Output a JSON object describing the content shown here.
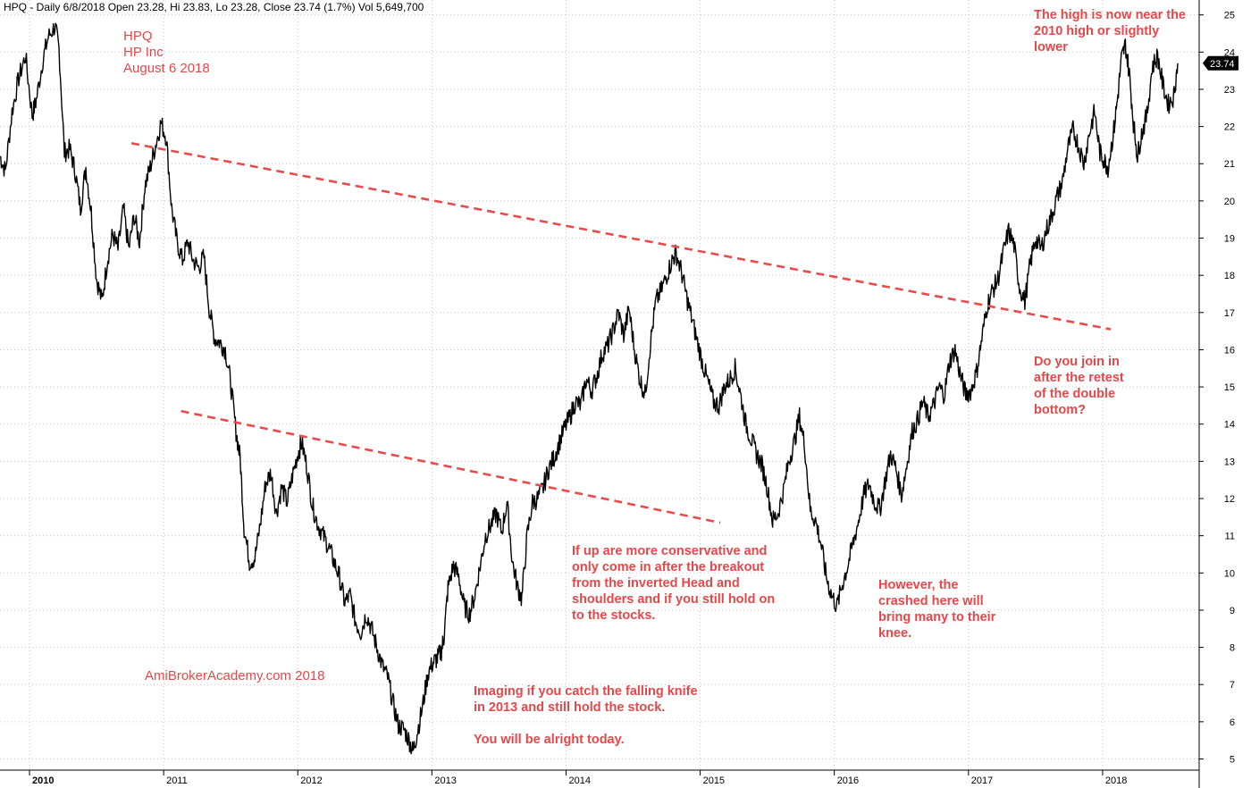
{
  "header": {
    "text": "HPQ - Daily 6/8/2018 Open 23.28, Hi 23.83, Lo 23.28, Close 23.74 (1.7%) Vol 5,649,700"
  },
  "price_label": "23.74",
  "colors": {
    "trendline": "#e84b4b",
    "note": "#e8474a",
    "price": "#000000",
    "grid": "#c8c8c8"
  },
  "notes": {
    "ticker": "HPQ\nHP Inc\nAugust 6 2018",
    "watermark": "AmiBrokerAcademy.com  2018",
    "knife": "Imaging if you catch the falling knife\nin 2013 and still hold the stock.\n\nYou will be alright today.",
    "conservative": "If up are more conservative and\nonly come in after the breakout\nfrom the inverted Head and\nshoulders and if you still hold on\nto the stocks.",
    "crash": "However, the\ncrashed here will\nbring many to their\nknee.",
    "retest": "Do you join in\nafter the retest\nof the double\nbottom?",
    "high": "The high is now near the\n2010 high or slightly\nlower"
  },
  "chart_data": {
    "type": "line",
    "title": "HPQ - Daily 6/8/2018",
    "ylim": [
      4.7,
      25.4
    ],
    "yticks": [
      5,
      6,
      7,
      8,
      9,
      10,
      11,
      12,
      13,
      14,
      15,
      16,
      17,
      18,
      19,
      20,
      21,
      22,
      23,
      24,
      25
    ],
    "xlim": [
      2009.78,
      2018.72
    ],
    "xtick_labels": [
      {
        "x": 2010,
        "label": "2010",
        "major": true
      },
      {
        "x": 2011,
        "label": "2011",
        "major": false
      },
      {
        "x": 2012,
        "label": "2012",
        "major": false
      },
      {
        "x": 2013,
        "label": "2013",
        "major": false
      },
      {
        "x": 2014,
        "label": "2014",
        "major": false
      },
      {
        "x": 2015,
        "label": "2015",
        "major": false
      },
      {
        "x": 2016,
        "label": "2016",
        "major": false
      },
      {
        "x": 2017,
        "label": "2017",
        "major": false
      },
      {
        "x": 2018,
        "label": "2018",
        "major": false
      }
    ],
    "series": [
      {
        "values": [
          [
            2009.78,
            21.2
          ],
          [
            2009.82,
            20.8
          ],
          [
            2009.87,
            22.4
          ],
          [
            2009.92,
            23.3
          ],
          [
            2009.97,
            23.9
          ],
          [
            2010.02,
            22.3
          ],
          [
            2010.05,
            22.7
          ],
          [
            2010.1,
            23.8
          ],
          [
            2010.14,
            24.4
          ],
          [
            2010.19,
            24.7
          ],
          [
            2010.22,
            24.1
          ],
          [
            2010.26,
            21.3
          ],
          [
            2010.3,
            21.4
          ],
          [
            2010.34,
            20.8
          ],
          [
            2010.38,
            19.8
          ],
          [
            2010.42,
            20.9
          ],
          [
            2010.46,
            19.7
          ],
          [
            2010.5,
            17.9
          ],
          [
            2010.54,
            17.3
          ],
          [
            2010.58,
            18.4
          ],
          [
            2010.62,
            19.1
          ],
          [
            2010.66,
            18.7
          ],
          [
            2010.7,
            19.8
          ],
          [
            2010.74,
            18.7
          ],
          [
            2010.78,
            19.6
          ],
          [
            2010.82,
            18.9
          ],
          [
            2010.86,
            20.4
          ],
          [
            2010.9,
            20.9
          ],
          [
            2010.94,
            21.5
          ],
          [
            2010.98,
            22.1
          ],
          [
            2011.02,
            21.7
          ],
          [
            2011.06,
            19.8
          ],
          [
            2011.1,
            18.9
          ],
          [
            2011.14,
            18.4
          ],
          [
            2011.18,
            18.9
          ],
          [
            2011.22,
            18.4
          ],
          [
            2011.26,
            18.2
          ],
          [
            2011.3,
            18.5
          ],
          [
            2011.34,
            17.1
          ],
          [
            2011.38,
            16.3
          ],
          [
            2011.42,
            16.2
          ],
          [
            2011.46,
            16.0
          ],
          [
            2011.5,
            15.1
          ],
          [
            2011.54,
            13.8
          ],
          [
            2011.57,
            13.1
          ],
          [
            2011.6,
            11.2
          ],
          [
            2011.64,
            10.3
          ],
          [
            2011.68,
            10.4
          ],
          [
            2011.72,
            11.3
          ],
          [
            2011.76,
            12.4
          ],
          [
            2011.8,
            12.7
          ],
          [
            2011.84,
            11.6
          ],
          [
            2011.88,
            12.3
          ],
          [
            2011.92,
            11.9
          ],
          [
            2011.96,
            12.6
          ],
          [
            2012.0,
            13.2
          ],
          [
            2012.03,
            13.5
          ],
          [
            2012.07,
            12.8
          ],
          [
            2012.11,
            11.8
          ],
          [
            2012.15,
            11.3
          ],
          [
            2012.19,
            11.0
          ],
          [
            2012.23,
            10.7
          ],
          [
            2012.27,
            10.3
          ],
          [
            2012.31,
            9.9
          ],
          [
            2012.35,
            9.2
          ],
          [
            2012.39,
            9.4
          ],
          [
            2012.43,
            8.7
          ],
          [
            2012.47,
            8.4
          ],
          [
            2012.51,
            8.9
          ],
          [
            2012.55,
            8.5
          ],
          [
            2012.59,
            8.0
          ],
          [
            2012.63,
            7.5
          ],
          [
            2012.67,
            7.2
          ],
          [
            2012.71,
            6.5
          ],
          [
            2012.75,
            5.9
          ],
          [
            2012.79,
            5.8
          ],
          [
            2012.83,
            5.5
          ],
          [
            2012.86,
            5.2
          ],
          [
            2012.89,
            5.7
          ],
          [
            2012.93,
            6.4
          ],
          [
            2012.97,
            7.3
          ],
          [
            2013.01,
            7.6
          ],
          [
            2013.04,
            7.7
          ],
          [
            2013.07,
            7.9
          ],
          [
            2013.09,
            8.3
          ],
          [
            2013.12,
            9.6
          ],
          [
            2013.16,
            10.2
          ],
          [
            2013.2,
            9.9
          ],
          [
            2013.24,
            9.1
          ],
          [
            2013.28,
            8.9
          ],
          [
            2013.32,
            9.4
          ],
          [
            2013.36,
            10.2
          ],
          [
            2013.4,
            11.0
          ],
          [
            2013.44,
            11.3
          ],
          [
            2013.48,
            11.6
          ],
          [
            2013.52,
            11.1
          ],
          [
            2013.56,
            11.9
          ],
          [
            2013.6,
            10.3
          ],
          [
            2013.64,
            9.6
          ],
          [
            2013.67,
            9.3
          ],
          [
            2013.71,
            11.0
          ],
          [
            2013.75,
            11.9
          ],
          [
            2013.79,
            12.0
          ],
          [
            2013.83,
            12.3
          ],
          [
            2013.87,
            12.8
          ],
          [
            2013.91,
            13.1
          ],
          [
            2013.95,
            13.5
          ],
          [
            2013.99,
            13.9
          ],
          [
            2014.03,
            14.2
          ],
          [
            2014.07,
            14.6
          ],
          [
            2014.11,
            14.5
          ],
          [
            2014.15,
            15.2
          ],
          [
            2014.19,
            14.9
          ],
          [
            2014.23,
            15.3
          ],
          [
            2014.27,
            15.9
          ],
          [
            2014.31,
            16.1
          ],
          [
            2014.35,
            16.5
          ],
          [
            2014.39,
            17.0
          ],
          [
            2014.43,
            16.4
          ],
          [
            2014.47,
            17.1
          ],
          [
            2014.51,
            16.0
          ],
          [
            2014.55,
            15.2
          ],
          [
            2014.59,
            14.8
          ],
          [
            2014.63,
            16.2
          ],
          [
            2014.67,
            17.3
          ],
          [
            2014.71,
            17.6
          ],
          [
            2014.75,
            18.0
          ],
          [
            2014.79,
            18.4
          ],
          [
            2014.82,
            18.6
          ],
          [
            2014.86,
            18.1
          ],
          [
            2014.9,
            17.4
          ],
          [
            2014.94,
            16.8
          ],
          [
            2014.98,
            16.2
          ],
          [
            2015.02,
            15.6
          ],
          [
            2015.06,
            15.1
          ],
          [
            2015.1,
            14.6
          ],
          [
            2015.14,
            14.5
          ],
          [
            2015.18,
            15.0
          ],
          [
            2015.22,
            15.2
          ],
          [
            2015.26,
            15.5
          ],
          [
            2015.3,
            14.8
          ],
          [
            2015.34,
            14.0
          ],
          [
            2015.38,
            13.6
          ],
          [
            2015.42,
            13.2
          ],
          [
            2015.46,
            12.9
          ],
          [
            2015.5,
            12.3
          ],
          [
            2015.54,
            11.4
          ],
          [
            2015.58,
            11.6
          ],
          [
            2015.62,
            12.2
          ],
          [
            2015.66,
            13.0
          ],
          [
            2015.7,
            13.5
          ],
          [
            2015.74,
            14.2
          ],
          [
            2015.78,
            13.4
          ],
          [
            2015.82,
            11.7
          ],
          [
            2015.86,
            11.4
          ],
          [
            2015.9,
            10.8
          ],
          [
            2015.94,
            9.9
          ],
          [
            2015.98,
            9.4
          ],
          [
            2016.02,
            9.1
          ],
          [
            2016.06,
            9.7
          ],
          [
            2016.1,
            10.2
          ],
          [
            2016.14,
            10.8
          ],
          [
            2016.18,
            11.4
          ],
          [
            2016.22,
            12.1
          ],
          [
            2016.26,
            12.4
          ],
          [
            2016.3,
            11.9
          ],
          [
            2016.34,
            11.7
          ],
          [
            2016.38,
            12.5
          ],
          [
            2016.42,
            13.2
          ],
          [
            2016.46,
            12.8
          ],
          [
            2016.5,
            12.1
          ],
          [
            2016.54,
            12.9
          ],
          [
            2016.58,
            13.8
          ],
          [
            2016.62,
            14.1
          ],
          [
            2016.66,
            14.6
          ],
          [
            2016.7,
            14.2
          ],
          [
            2016.74,
            14.5
          ],
          [
            2016.78,
            15.0
          ],
          [
            2016.82,
            14.8
          ],
          [
            2016.86,
            15.7
          ],
          [
            2016.9,
            16.0
          ],
          [
            2016.94,
            15.3
          ],
          [
            2016.98,
            14.8
          ],
          [
            2017.02,
            14.9
          ],
          [
            2017.06,
            15.4
          ],
          [
            2017.1,
            16.3
          ],
          [
            2017.14,
            17.2
          ],
          [
            2017.18,
            17.6
          ],
          [
            2017.22,
            17.9
          ],
          [
            2017.26,
            18.6
          ],
          [
            2017.3,
            19.2
          ],
          [
            2017.34,
            18.8
          ],
          [
            2017.38,
            17.7
          ],
          [
            2017.42,
            17.3
          ],
          [
            2017.46,
            18.3
          ],
          [
            2017.5,
            19.0
          ],
          [
            2017.54,
            18.7
          ],
          [
            2017.58,
            19.2
          ],
          [
            2017.62,
            19.6
          ],
          [
            2017.66,
            20.1
          ],
          [
            2017.7,
            20.5
          ],
          [
            2017.74,
            21.4
          ],
          [
            2017.78,
            21.9
          ],
          [
            2017.82,
            21.5
          ],
          [
            2017.86,
            21.0
          ],
          [
            2017.9,
            21.8
          ],
          [
            2017.94,
            22.4
          ],
          [
            2017.98,
            21.3
          ],
          [
            2018.01,
            21.1
          ],
          [
            2018.04,
            20.9
          ],
          [
            2018.08,
            21.8
          ],
          [
            2018.11,
            22.7
          ],
          [
            2018.14,
            23.8
          ],
          [
            2018.17,
            24.2
          ],
          [
            2018.2,
            23.4
          ],
          [
            2018.23,
            22.1
          ],
          [
            2018.26,
            21.2
          ],
          [
            2018.29,
            21.8
          ],
          [
            2018.33,
            22.3
          ],
          [
            2018.37,
            23.6
          ],
          [
            2018.41,
            23.9
          ],
          [
            2018.45,
            23.1
          ],
          [
            2018.49,
            22.6
          ],
          [
            2018.53,
            22.8
          ],
          [
            2018.56,
            23.7
          ]
        ]
      }
    ],
    "trendlines": [
      {
        "from": [
          2010.76,
          21.55
        ],
        "to": [
          2018.06,
          16.55
        ]
      },
      {
        "from": [
          2011.13,
          14.35
        ],
        "to": [
          2015.15,
          11.35
        ]
      }
    ]
  }
}
